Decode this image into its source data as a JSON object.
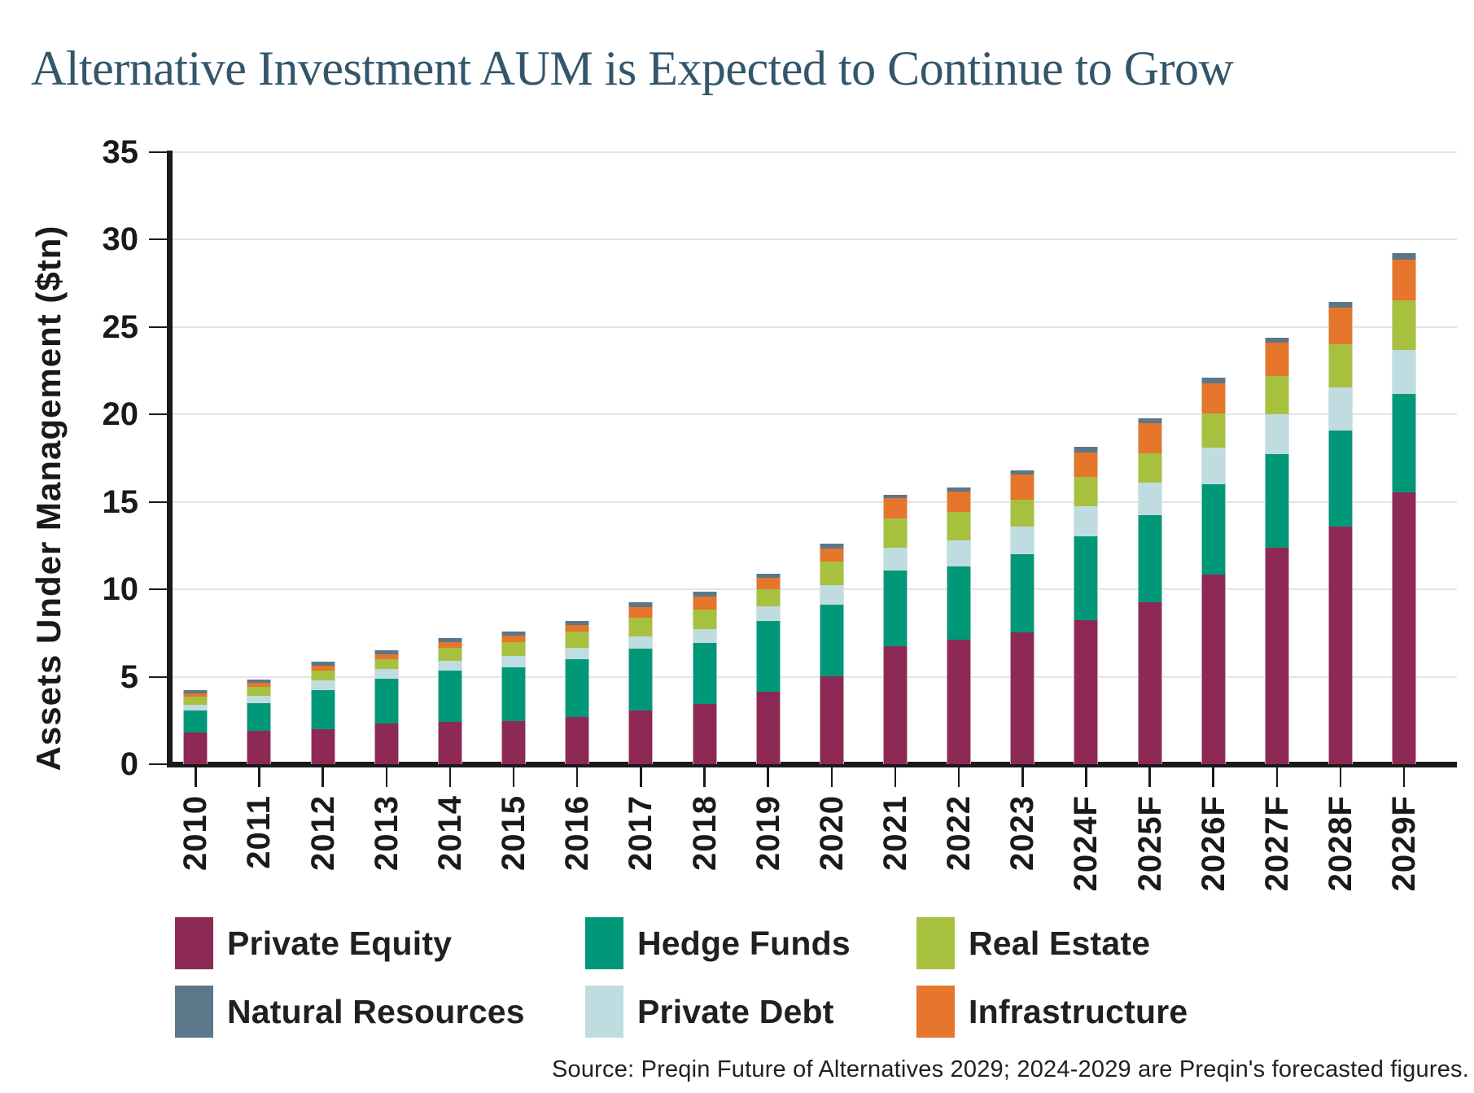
{
  "title": "Alternative Investment AUM is Expected to Continue to Grow",
  "source_note": "Source: Preqin Future of Alternatives 2029; 2024-2029 are Preqin's forecasted figures.",
  "colors": {
    "title_text": "#33566B",
    "axis": "#1A1A1A",
    "gridline": "#E4E4E4",
    "body_text": "#231F20",
    "private_equity": "#8E2956",
    "hedge_funds": "#009878",
    "private_debt": "#BFDCE1",
    "real_estate": "#A7C13F",
    "infrastructure": "#E5762B",
    "natural_resources": "#5B7789"
  },
  "chart_data": {
    "type": "bar",
    "stacked": true,
    "title": "Alternative Investment AUM is Expected to Continue to Grow",
    "xlabel": "",
    "ylabel": "Assets Under Management ($tn)",
    "ylim": [
      0,
      35
    ],
    "y_ticks": [
      0,
      5,
      10,
      15,
      20,
      25,
      30,
      35
    ],
    "grid": "horizontal",
    "legend_position": "bottom",
    "categories": [
      "2010",
      "2011",
      "2012",
      "2013",
      "2014",
      "2015",
      "2016",
      "2017",
      "2018",
      "2019",
      "2020",
      "2021",
      "2022",
      "2023",
      "2024F",
      "2025F",
      "2026F",
      "2027F",
      "2028F",
      "2029F"
    ],
    "stack_order_bottom_to_top": [
      "Private Equity",
      "Hedge Funds",
      "Private Debt",
      "Real Estate",
      "Infrastructure",
      "Natural Resources"
    ],
    "series": [
      {
        "name": "Private Equity",
        "color": "#8E2956",
        "values": [
          1.8,
          1.9,
          2.0,
          2.35,
          2.4,
          2.45,
          2.7,
          3.05,
          3.45,
          4.15,
          5.05,
          6.75,
          7.1,
          7.55,
          8.25,
          9.25,
          10.85,
          12.4,
          13.6,
          15.55
        ]
      },
      {
        "name": "Hedge Funds",
        "color": "#009878",
        "values": [
          1.25,
          1.6,
          2.25,
          2.55,
          2.95,
          3.1,
          3.3,
          3.55,
          3.5,
          4.05,
          4.05,
          4.35,
          4.2,
          4.45,
          4.8,
          5.0,
          5.15,
          5.35,
          5.5,
          5.65
        ]
      },
      {
        "name": "Private Debt",
        "color": "#BFDCE1",
        "values": [
          0.35,
          0.4,
          0.55,
          0.55,
          0.55,
          0.65,
          0.65,
          0.7,
          0.8,
          0.85,
          1.15,
          1.3,
          1.5,
          1.6,
          1.7,
          1.85,
          2.1,
          2.25,
          2.45,
          2.5
        ]
      },
      {
        "name": "Real Estate",
        "color": "#A7C13F",
        "values": [
          0.45,
          0.5,
          0.55,
          0.55,
          0.75,
          0.8,
          0.95,
          1.1,
          1.1,
          0.95,
          1.35,
          1.65,
          1.65,
          1.55,
          1.7,
          1.7,
          1.95,
          2.2,
          2.45,
          2.85
        ]
      },
      {
        "name": "Infrastructure",
        "color": "#E5762B",
        "values": [
          0.2,
          0.25,
          0.3,
          0.3,
          0.35,
          0.35,
          0.35,
          0.6,
          0.75,
          0.65,
          0.75,
          1.15,
          1.15,
          1.4,
          1.4,
          1.7,
          1.75,
          1.9,
          2.1,
          2.3
        ]
      },
      {
        "name": "Natural Resources",
        "color": "#5B7789",
        "values": [
          0.2,
          0.2,
          0.2,
          0.2,
          0.2,
          0.25,
          0.25,
          0.25,
          0.25,
          0.25,
          0.25,
          0.2,
          0.25,
          0.25,
          0.3,
          0.3,
          0.3,
          0.3,
          0.35,
          0.4
        ]
      }
    ]
  },
  "legend": {
    "rows": [
      [
        {
          "label": "Private Equity",
          "color": "#8E2956"
        },
        {
          "label": "Hedge Funds",
          "color": "#009878"
        },
        {
          "label": "Real Estate",
          "color": "#A7C13F"
        }
      ],
      [
        {
          "label": "Natural Resources",
          "color": "#5B7789"
        },
        {
          "label": "Private Debt",
          "color": "#BFDCE1"
        },
        {
          "label": "Infrastructure",
          "color": "#E5762B"
        }
      ]
    ]
  }
}
